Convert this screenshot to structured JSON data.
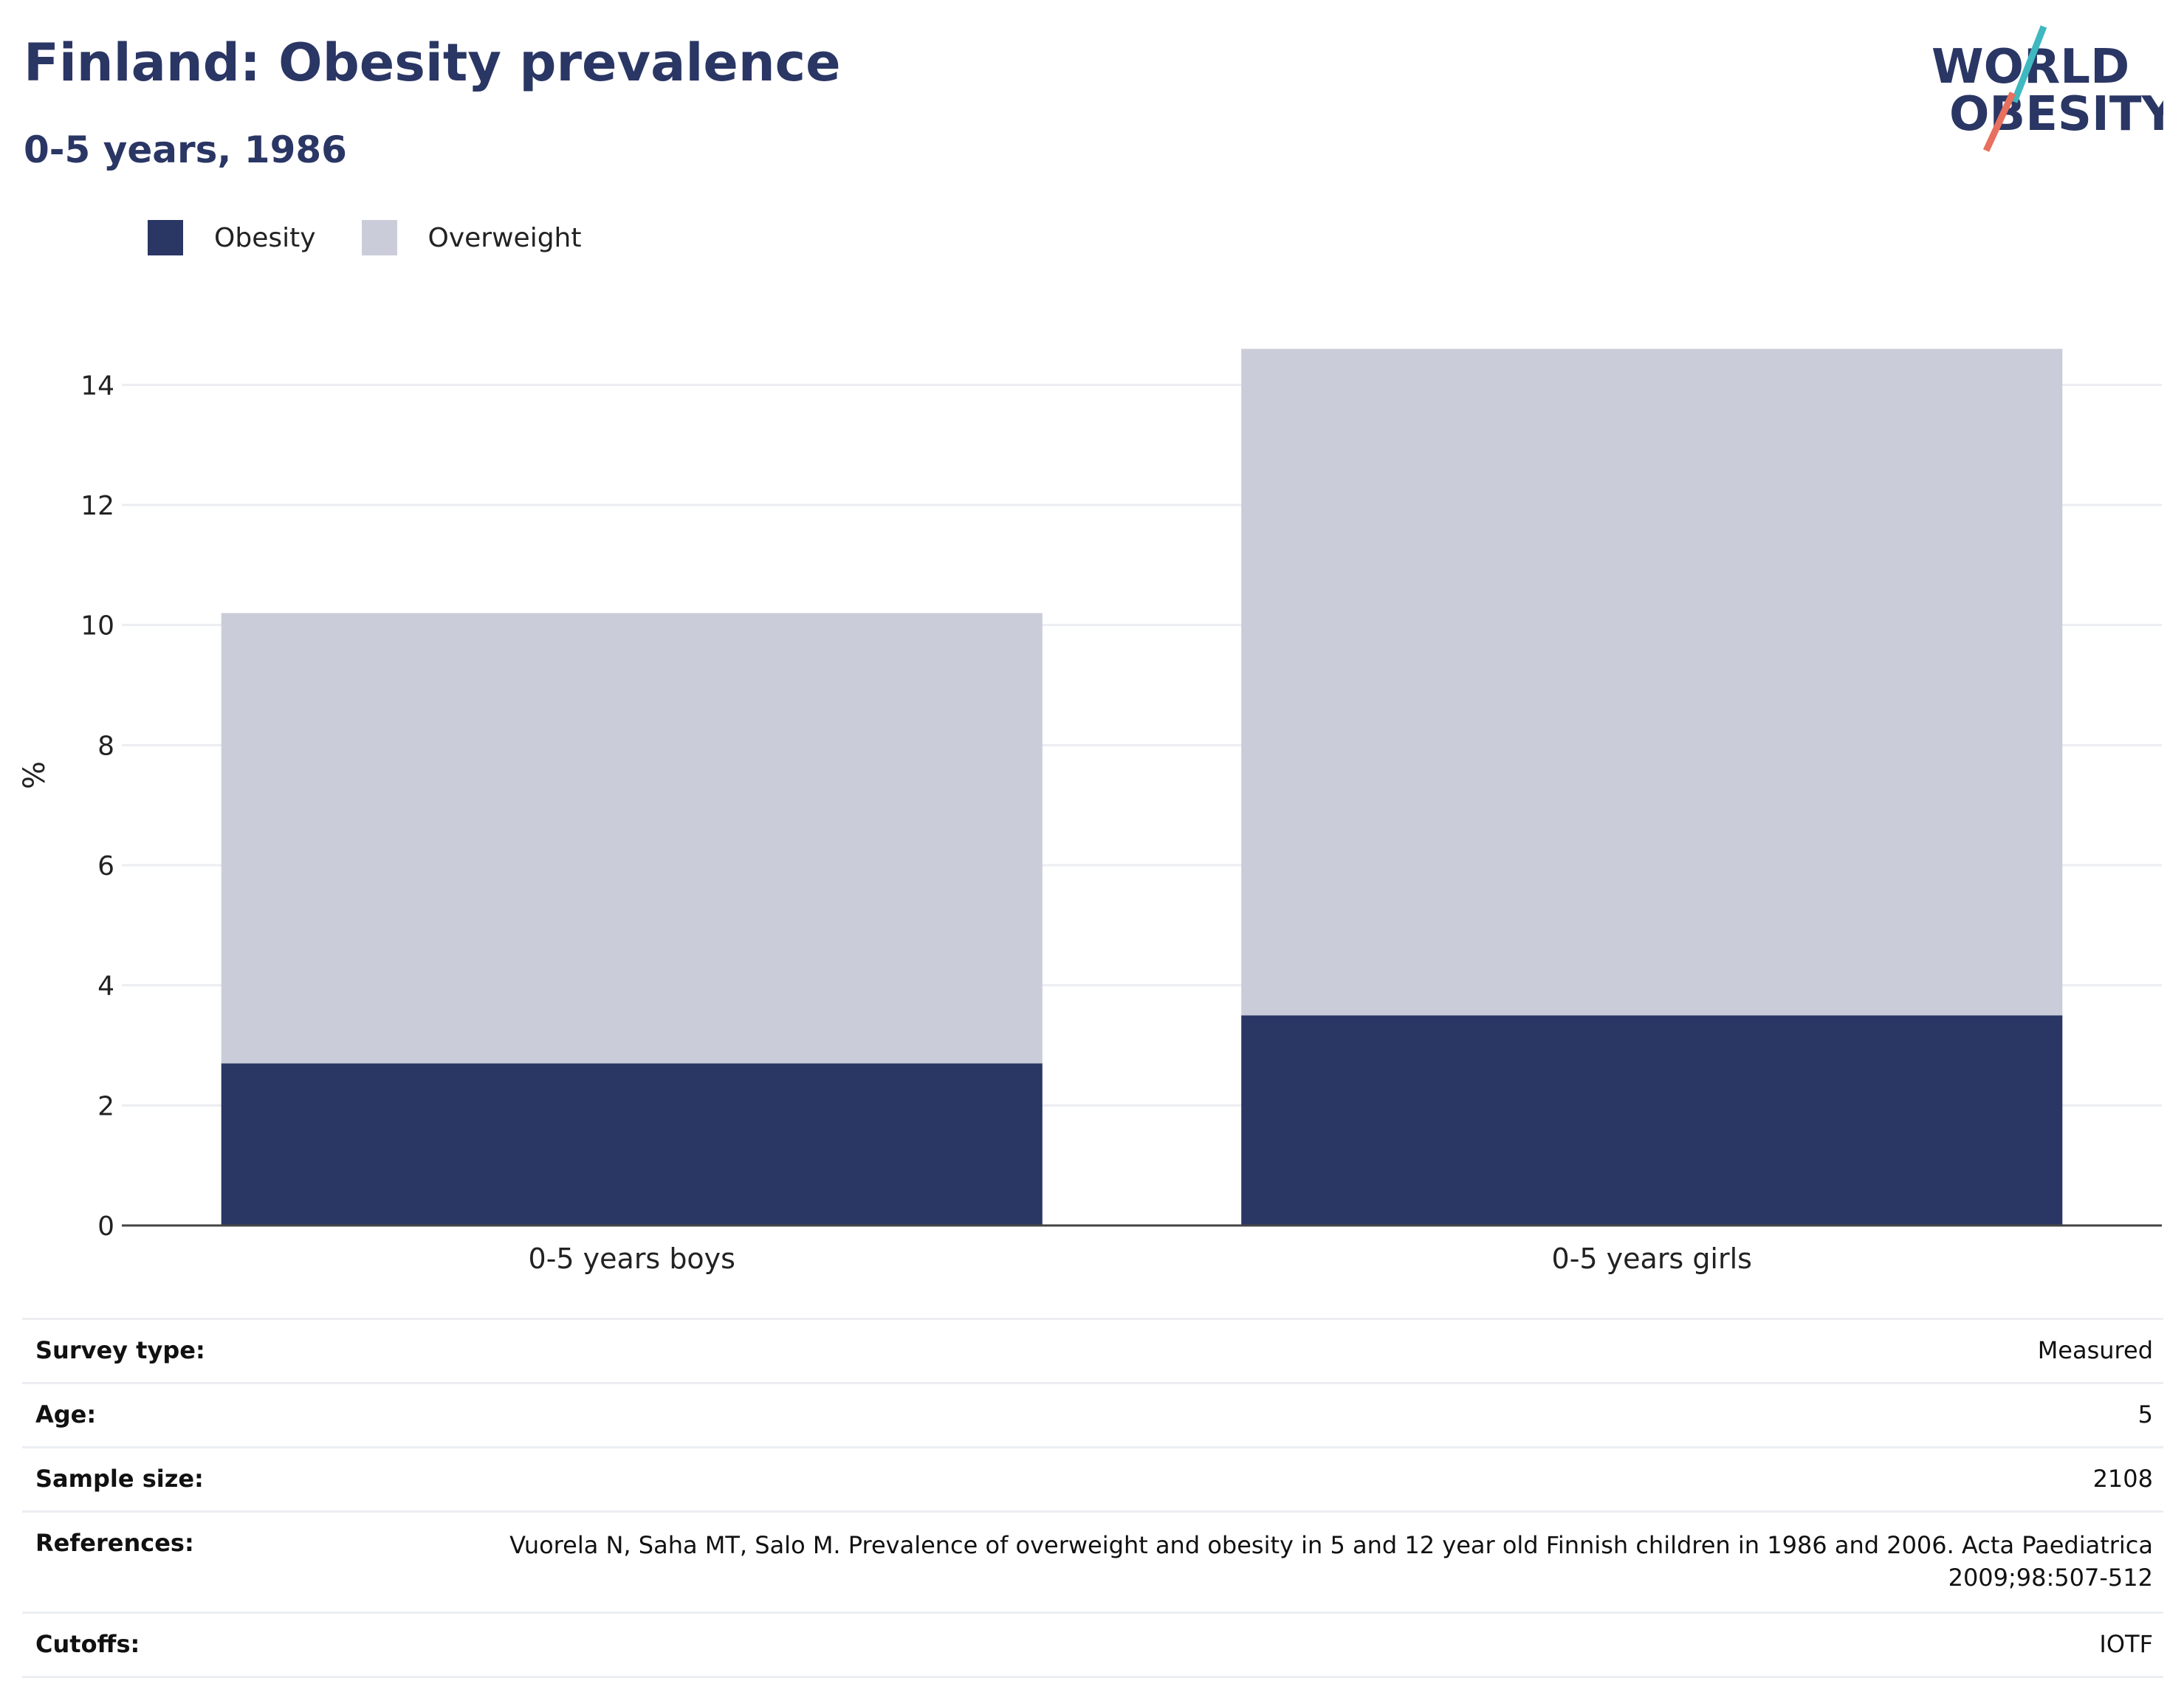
{
  "header": {
    "title": "Finland: Obesity prevalence",
    "subtitle": "0-5 years, 1986"
  },
  "logo": {
    "line1": "WORLD",
    "line2": "OBESITY"
  },
  "colors": {
    "obesity": "#2a3664",
    "overweight": "#cacdd9",
    "text": "#2a3664",
    "logo_teal": "#3fb8c0",
    "logo_coral": "#e8705f",
    "grid": "#ebedf2"
  },
  "chart_data": {
    "type": "bar",
    "stacked": true,
    "categories": [
      "0-5 years boys",
      "0-5 years girls"
    ],
    "series": [
      {
        "name": "Obesity",
        "values": [
          2.7,
          3.5
        ]
      },
      {
        "name": "Overweight",
        "values": [
          7.5,
          11.1
        ]
      }
    ],
    "ylabel": "%",
    "ylim": [
      0,
      15
    ],
    "yticks": [
      "0",
      "2",
      "4",
      "6",
      "8",
      "10",
      "12",
      "14"
    ],
    "grid": true,
    "legend_position": "top-left"
  },
  "info": [
    {
      "label": "Survey type:",
      "value": "Measured"
    },
    {
      "label": "Age:",
      "value": "5"
    },
    {
      "label": "Sample size:",
      "value": "2108"
    },
    {
      "label": "References:",
      "value": "Vuorela N, Saha MT, Salo M. Prevalence of overweight and obesity in 5 and 12 year old Finnish children in 1986 and 2006. Acta Paediatrica 2009;98:507-512"
    },
    {
      "label": "Cutoffs:",
      "value": "IOTF"
    }
  ]
}
